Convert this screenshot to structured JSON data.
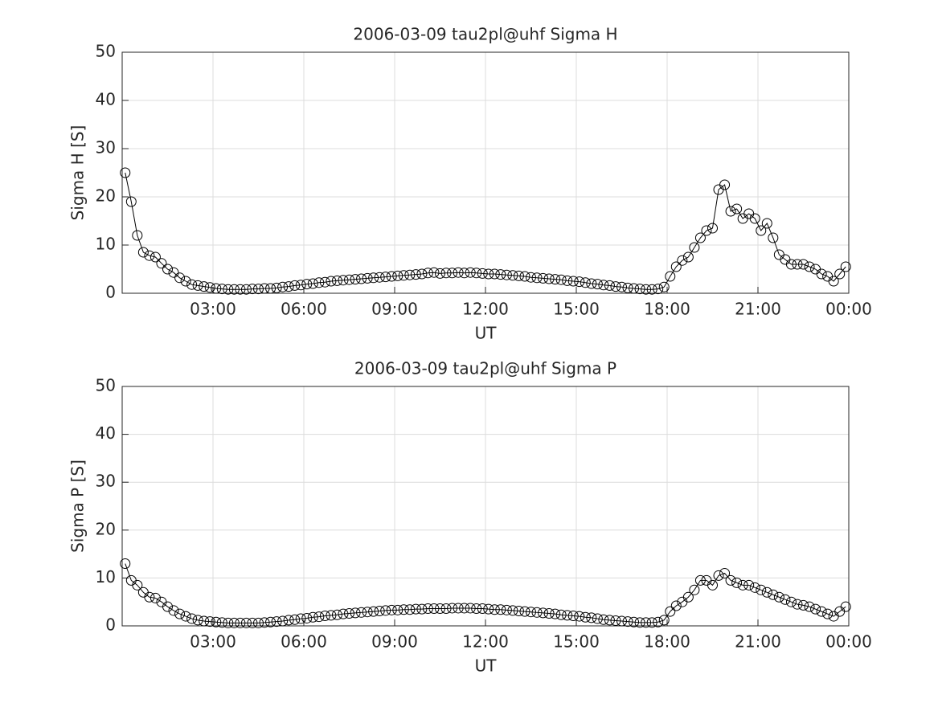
{
  "chart_data": [
    {
      "type": "line",
      "title": "2006-03-09  tau2pl@uhf Sigma H",
      "xlabel": "UT",
      "ylabel": "Sigma H [S]",
      "color": "#000000",
      "marker": "circle",
      "grid": true,
      "xlim": [
        0,
        24
      ],
      "ylim": [
        0,
        50
      ],
      "xticks": [
        {
          "value": 3,
          "label": "03:00"
        },
        {
          "value": 6,
          "label": "06:00"
        },
        {
          "value": 9,
          "label": "09:00"
        },
        {
          "value": 12,
          "label": "12:00"
        },
        {
          "value": 15,
          "label": "15:00"
        },
        {
          "value": 18,
          "label": "18:00"
        },
        {
          "value": 21,
          "label": "21:00"
        },
        {
          "value": 24,
          "label": "00:00"
        }
      ],
      "yticks": [
        0,
        10,
        20,
        30,
        40,
        50
      ],
      "x": [
        0.1,
        0.3,
        0.5,
        0.7,
        0.9,
        1.1,
        1.3,
        1.5,
        1.7,
        1.9,
        2.1,
        2.3,
        2.5,
        2.7,
        2.9,
        3.1,
        3.3,
        3.5,
        3.7,
        3.9,
        4.1,
        4.3,
        4.5,
        4.7,
        4.9,
        5.1,
        5.3,
        5.5,
        5.7,
        5.9,
        6.1,
        6.3,
        6.5,
        6.7,
        6.9,
        7.1,
        7.3,
        7.5,
        7.7,
        7.9,
        8.1,
        8.3,
        8.5,
        8.7,
        8.9,
        9.1,
        9.3,
        9.5,
        9.7,
        9.9,
        10.1,
        10.3,
        10.5,
        10.7,
        10.9,
        11.1,
        11.3,
        11.5,
        11.7,
        11.9,
        12.1,
        12.3,
        12.5,
        12.7,
        12.9,
        13.1,
        13.3,
        13.5,
        13.7,
        13.9,
        14.1,
        14.3,
        14.5,
        14.7,
        14.9,
        15.1,
        15.3,
        15.5,
        15.7,
        15.9,
        16.1,
        16.3,
        16.5,
        16.7,
        16.9,
        17.1,
        17.3,
        17.5,
        17.7,
        17.9,
        18.1,
        18.3,
        18.5,
        18.7,
        18.9,
        19.1,
        19.3,
        19.5,
        19.7,
        19.9,
        20.1,
        20.3,
        20.5,
        20.7,
        20.9,
        21.1,
        21.3,
        21.5,
        21.7,
        21.9,
        22.1,
        22.3,
        22.5,
        22.7,
        22.9,
        23.1,
        23.3,
        23.5,
        23.7,
        23.9
      ],
      "values": [
        25,
        19,
        12,
        8.5,
        7.8,
        7.5,
        6.2,
        5,
        4.3,
        3.2,
        2.5,
        1.8,
        1.6,
        1.4,
        1.2,
        1.0,
        0.9,
        0.8,
        0.8,
        0.8,
        0.8,
        0.9,
        0.9,
        1.0,
        1.0,
        1.1,
        1.3,
        1.4,
        1.6,
        1.7,
        1.9,
        2.0,
        2.2,
        2.3,
        2.5,
        2.6,
        2.7,
        2.8,
        2.9,
        3.0,
        3.1,
        3.2,
        3.3,
        3.4,
        3.5,
        3.6,
        3.7,
        3.8,
        3.9,
        4.0,
        4.2,
        4.3,
        4.1,
        4.2,
        4.2,
        4.3,
        4.2,
        4.3,
        4.2,
        4.1,
        4.0,
        4.0,
        3.9,
        3.8,
        3.7,
        3.6,
        3.5,
        3.3,
        3.2,
        3.1,
        3.0,
        2.9,
        2.8,
        2.6,
        2.5,
        2.4,
        2.2,
        2.0,
        1.9,
        1.7,
        1.6,
        1.4,
        1.3,
        1.1,
        1.0,
        0.9,
        0.8,
        0.8,
        0.9,
        1.3,
        3.5,
        5.5,
        6.8,
        7.5,
        9.5,
        11.5,
        13,
        13.5,
        21.5,
        22.5,
        17,
        17.5,
        15.5,
        16.5,
        15.5,
        13,
        14.5,
        11.5,
        8,
        7,
        6,
        6,
        6,
        5.5,
        5,
        4,
        3.5,
        2.5,
        4,
        5.5
      ]
    },
    {
      "type": "line",
      "title": "2006-03-09  tau2pl@uhf Sigma P",
      "xlabel": "UT",
      "ylabel": "Sigma P [S]",
      "color": "#000000",
      "marker": "circle",
      "grid": true,
      "xlim": [
        0,
        24
      ],
      "ylim": [
        0,
        50
      ],
      "xticks": [
        {
          "value": 3,
          "label": "03:00"
        },
        {
          "value": 6,
          "label": "06:00"
        },
        {
          "value": 9,
          "label": "09:00"
        },
        {
          "value": 12,
          "label": "12:00"
        },
        {
          "value": 15,
          "label": "15:00"
        },
        {
          "value": 18,
          "label": "18:00"
        },
        {
          "value": 21,
          "label": "21:00"
        },
        {
          "value": 24,
          "label": "00:00"
        }
      ],
      "yticks": [
        0,
        10,
        20,
        30,
        40,
        50
      ],
      "x": [
        0.1,
        0.3,
        0.5,
        0.7,
        0.9,
        1.1,
        1.3,
        1.5,
        1.7,
        1.9,
        2.1,
        2.3,
        2.5,
        2.7,
        2.9,
        3.1,
        3.3,
        3.5,
        3.7,
        3.9,
        4.1,
        4.3,
        4.5,
        4.7,
        4.9,
        5.1,
        5.3,
        5.5,
        5.7,
        5.9,
        6.1,
        6.3,
        6.5,
        6.7,
        6.9,
        7.1,
        7.3,
        7.5,
        7.7,
        7.9,
        8.1,
        8.3,
        8.5,
        8.7,
        8.9,
        9.1,
        9.3,
        9.5,
        9.7,
        9.9,
        10.1,
        10.3,
        10.5,
        10.7,
        10.9,
        11.1,
        11.3,
        11.5,
        11.7,
        11.9,
        12.1,
        12.3,
        12.5,
        12.7,
        12.9,
        13.1,
        13.3,
        13.5,
        13.7,
        13.9,
        14.1,
        14.3,
        14.5,
        14.7,
        14.9,
        15.1,
        15.3,
        15.5,
        15.7,
        15.9,
        16.1,
        16.3,
        16.5,
        16.7,
        16.9,
        17.1,
        17.3,
        17.5,
        17.7,
        17.9,
        18.1,
        18.3,
        18.5,
        18.7,
        18.9,
        19.1,
        19.3,
        19.5,
        19.7,
        19.9,
        20.1,
        20.3,
        20.5,
        20.7,
        20.9,
        21.1,
        21.3,
        21.5,
        21.7,
        21.9,
        22.1,
        22.3,
        22.5,
        22.7,
        22.9,
        23.1,
        23.3,
        23.5,
        23.7,
        23.9
      ],
      "values": [
        13,
        9.5,
        8.5,
        7,
        6,
        5.8,
        5,
        4,
        3.2,
        2.5,
        2.0,
        1.5,
        1.2,
        1.0,
        0.9,
        0.8,
        0.7,
        0.6,
        0.6,
        0.6,
        0.6,
        0.6,
        0.6,
        0.7,
        0.8,
        0.9,
        1.0,
        1.2,
        1.3,
        1.5,
        1.6,
        1.8,
        1.9,
        2.1,
        2.2,
        2.3,
        2.5,
        2.6,
        2.7,
        2.8,
        2.9,
        3.0,
        3.1,
        3.2,
        3.3,
        3.3,
        3.4,
        3.4,
        3.5,
        3.5,
        3.6,
        3.6,
        3.6,
        3.6,
        3.7,
        3.7,
        3.7,
        3.7,
        3.6,
        3.6,
        3.5,
        3.4,
        3.4,
        3.3,
        3.2,
        3.1,
        3.0,
        2.9,
        2.8,
        2.7,
        2.6,
        2.5,
        2.3,
        2.2,
        2.1,
        2.0,
        1.8,
        1.7,
        1.5,
        1.3,
        1.2,
        1.1,
        1.0,
        0.9,
        0.8,
        0.7,
        0.7,
        0.7,
        0.8,
        1.2,
        3.0,
        4.2,
        5.0,
        6.0,
        7.5,
        9.5,
        9.5,
        8.5,
        10.5,
        11,
        9.5,
        9,
        8.5,
        8.5,
        8,
        7.5,
        7,
        6.5,
        6,
        5.5,
        5,
        4.5,
        4.3,
        4,
        3.5,
        3,
        2.5,
        2,
        3,
        4
      ]
    }
  ]
}
